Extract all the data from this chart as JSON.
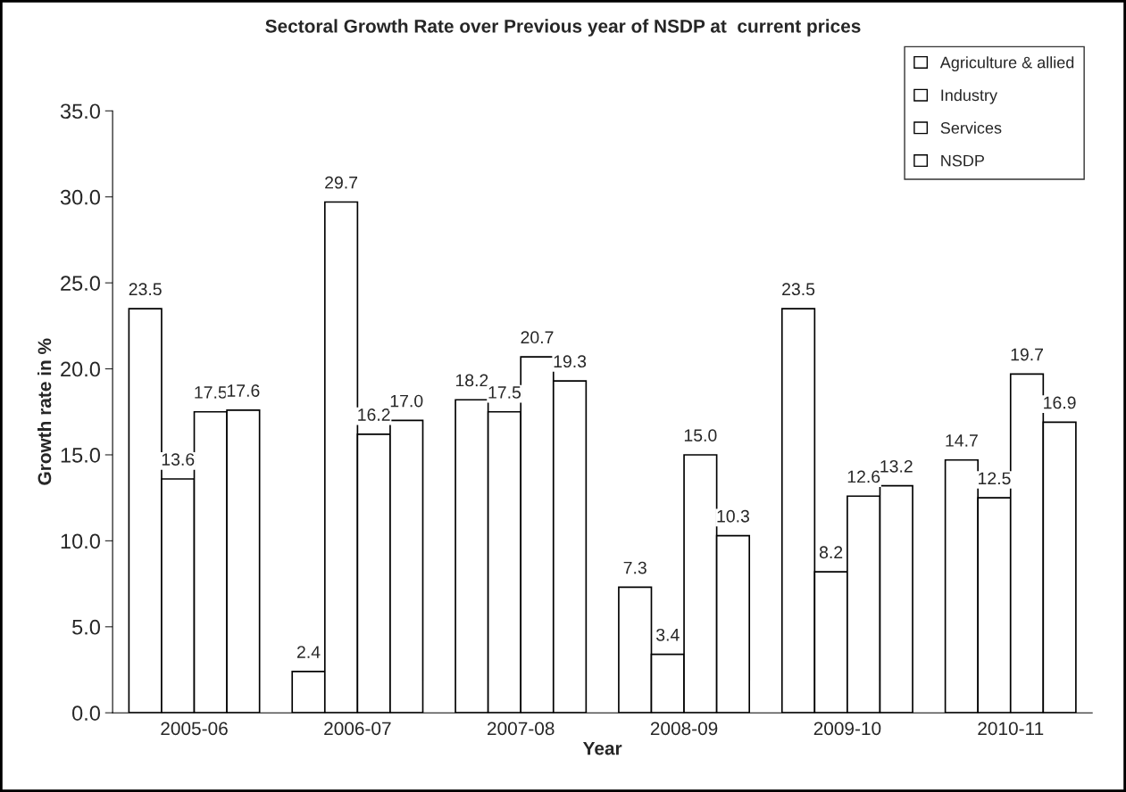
{
  "chart_data": {
    "type": "bar",
    "title": "Sectoral Growth Rate over Previous year of NSDP at  current prices",
    "xlabel": "Year",
    "ylabel": "Growth rate in %",
    "categories": [
      "2005-06",
      "2006-07",
      "2007-08",
      "2008-09",
      "2009-10",
      "2010-11"
    ],
    "series": [
      {
        "name": "Agriculture & allied",
        "color": "#ffffff",
        "values": [
          23.5,
          2.4,
          18.2,
          7.3,
          23.5,
          14.7
        ],
        "value_labels": [
          "23.5",
          "2.4",
          "18.2",
          "7.3",
          "23.5",
          "14.7"
        ]
      },
      {
        "name": "Industry",
        "color": "#ffffff",
        "values": [
          13.6,
          29.7,
          17.5,
          3.4,
          8.2,
          12.5
        ],
        "value_labels": [
          "13.6",
          "29.7",
          "17.5",
          "3.4",
          "8.2",
          "12.5"
        ]
      },
      {
        "name": "Services",
        "color": "#ffffff",
        "values": [
          17.5,
          16.2,
          20.7,
          15.0,
          12.6,
          19.7
        ],
        "value_labels": [
          "17.5",
          "16.2",
          "20.7",
          "15.0",
          "12.6",
          "19.7"
        ]
      },
      {
        "name": "NSDP",
        "color": "#ffffff",
        "values": [
          17.6,
          17.0,
          19.3,
          10.3,
          13.2,
          16.9
        ],
        "value_labels": [
          "17.6",
          "17.0",
          "19.3",
          "10.3",
          "13.2",
          "16.9"
        ]
      }
    ],
    "ylim": [
      0,
      35
    ],
    "yticks": [
      {
        "value": 0,
        "label": "0.0"
      },
      {
        "value": 5,
        "label": "5.0"
      },
      {
        "value": 10,
        "label": "10.0"
      },
      {
        "value": 15,
        "label": "15.0"
      },
      {
        "value": 20,
        "label": "20.0"
      },
      {
        "value": 25,
        "label": "25.0"
      },
      {
        "value": 30,
        "label": "30.0"
      },
      {
        "value": 35,
        "label": "35.0"
      }
    ],
    "legend": "top right",
    "grid": false
  }
}
